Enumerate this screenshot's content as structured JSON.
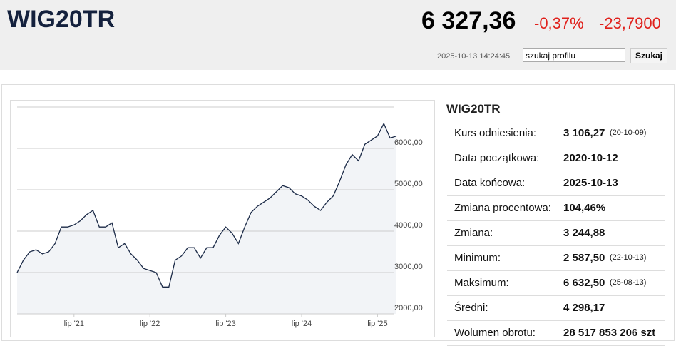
{
  "header": {
    "symbol": "WIG20TR",
    "price": "6 327,36",
    "change_pct": "-0,37%",
    "change_abs": "-23,7900",
    "timestamp": "2025-10-13 14:24:45",
    "search_placeholder": "szukaj profilu",
    "search_button": "Szukaj"
  },
  "chart_data": {
    "type": "line",
    "color": "#1b2a47",
    "area_color": "#f2f4f7",
    "x": [
      0,
      1,
      2,
      3,
      4,
      5,
      6,
      7,
      8,
      9,
      10,
      11,
      12,
      13,
      14,
      15,
      16,
      17,
      18,
      19,
      20,
      21,
      22,
      23,
      24,
      25,
      26,
      27,
      28,
      29,
      30,
      31,
      32,
      33,
      34,
      35,
      36,
      37,
      38,
      39,
      40,
      41,
      42,
      43,
      44,
      45,
      46,
      47,
      48,
      49,
      50,
      51,
      52,
      53,
      54,
      55,
      56,
      57,
      58,
      59,
      60
    ],
    "values": [
      3000,
      3300,
      3500,
      3550,
      3450,
      3500,
      3700,
      4100,
      4100,
      4150,
      4250,
      4400,
      4500,
      4100,
      4100,
      4200,
      3600,
      3700,
      3450,
      3300,
      3100,
      3050,
      3000,
      2650,
      2650,
      3300,
      3400,
      3600,
      3600,
      3350,
      3600,
      3600,
      3900,
      4100,
      3950,
      3700,
      4100,
      4450,
      4600,
      4700,
      4800,
      4950,
      5100,
      5050,
      4900,
      4850,
      4750,
      4600,
      4500,
      4700,
      4850,
      5200,
      5600,
      5850,
      5700,
      6100,
      6200,
      6300,
      6600,
      6250,
      6300
    ],
    "xlim": [
      0,
      60
    ],
    "xticks": [
      {
        "value": 9,
        "label": "lip '21"
      },
      {
        "value": 21,
        "label": "lip '22"
      },
      {
        "value": 33,
        "label": "lip '23"
      },
      {
        "value": 45,
        "label": "lip '24"
      },
      {
        "value": 57,
        "label": "lip '25"
      }
    ],
    "ylim": [
      2000,
      7000
    ],
    "yticks": [
      {
        "value": 2000,
        "label": "2000,00"
      },
      {
        "value": 3000,
        "label": "3000,00"
      },
      {
        "value": 4000,
        "label": "4000,00"
      },
      {
        "value": 5000,
        "label": "5000,00"
      },
      {
        "value": 6000,
        "label": "6000,00"
      }
    ],
    "grid": true
  },
  "stats": {
    "title": "WIG20TR",
    "rows": [
      {
        "label": "Kurs odniesienia:",
        "value": "3 106,27",
        "note": "(20-10-09)"
      },
      {
        "label": "Data początkowa:",
        "value": "2020-10-12"
      },
      {
        "label": "Data końcowa:",
        "value": "2025-10-13"
      },
      {
        "label": "Zmiana procentowa:",
        "value": "104,46%"
      },
      {
        "label": "Zmiana:",
        "value": "3 244,88"
      },
      {
        "label": "Minimum:",
        "value": "2 587,50",
        "note": "(22-10-13)"
      },
      {
        "label": "Maksimum:",
        "value": "6 632,50",
        "note": "(25-08-13)"
      },
      {
        "label": "Średni:",
        "value": "4 298,17"
      },
      {
        "label": "Wolumen obrotu:",
        "value": "28 517 853 206 szt"
      }
    ]
  }
}
